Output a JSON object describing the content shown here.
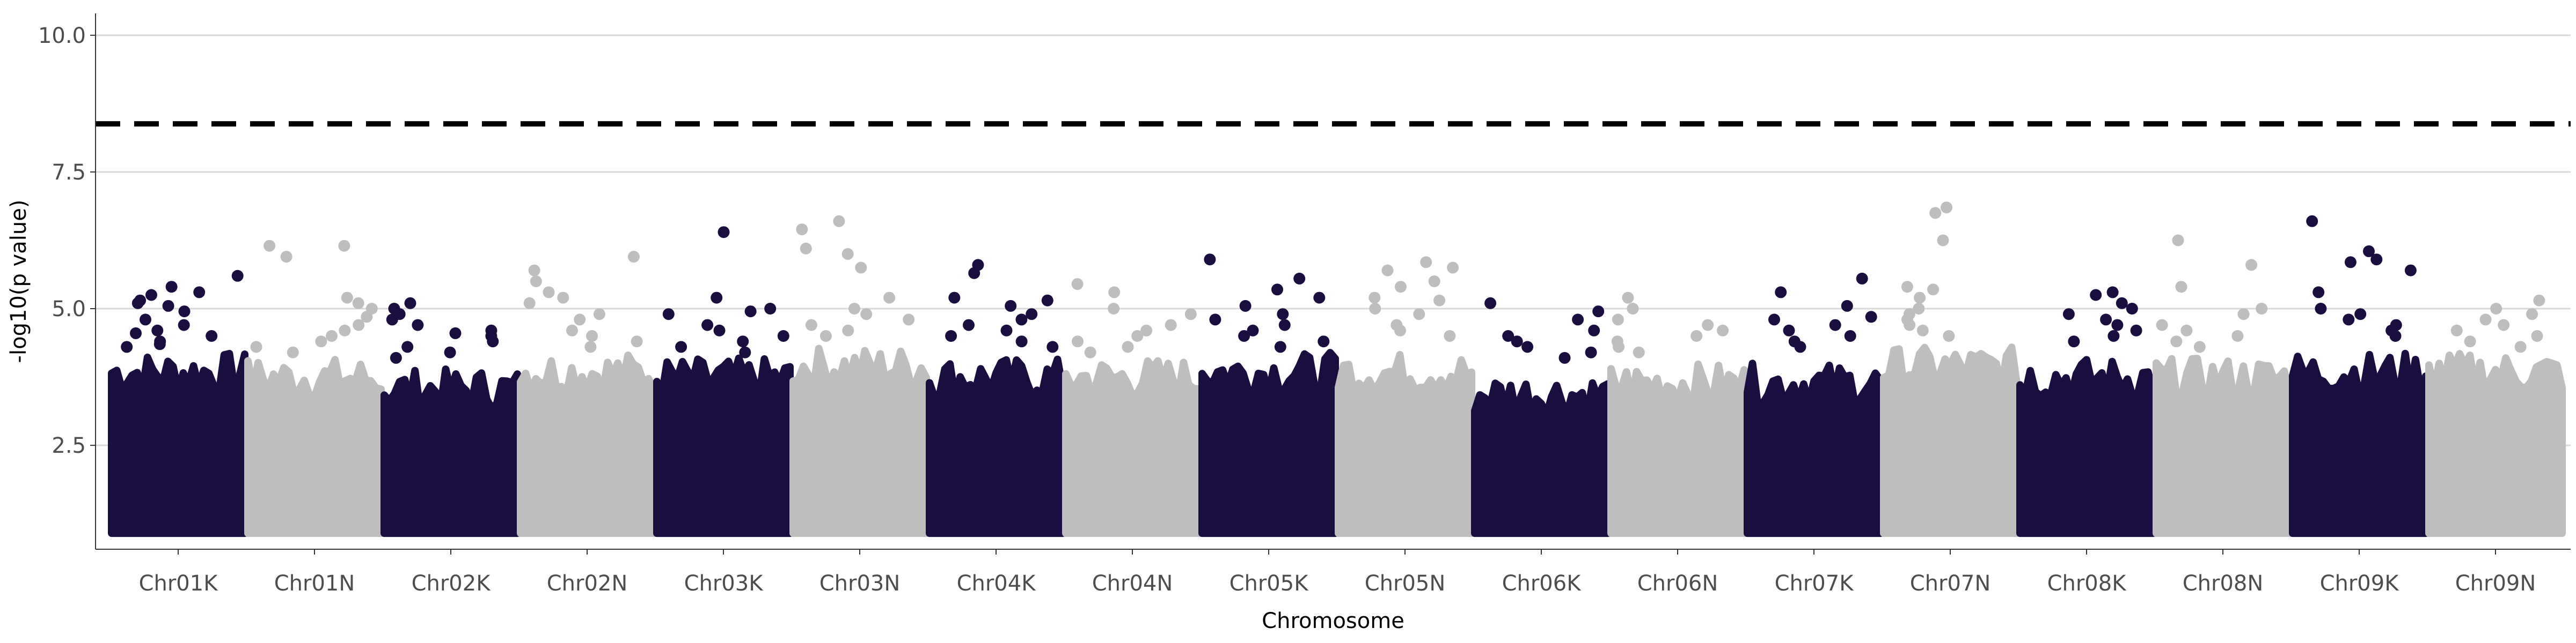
{
  "chart_data": {
    "type": "scatter",
    "xlabel": "Chromosome",
    "ylabel": "-log10(p value)",
    "ylim": [
      0.6,
      10.4
    ],
    "y_ticks": [
      {
        "value": 2.5,
        "label": "2.5"
      },
      {
        "value": 5.0,
        "label": "5.0"
      },
      {
        "value": 7.5,
        "label": "7.5"
      },
      {
        "value": 10.0,
        "label": "10.0"
      }
    ],
    "threshold": 8.38,
    "grid": "horizontal major",
    "legend": "none",
    "colors": {
      "odd": "#1a0e40",
      "even": "#bebebe",
      "threshold": "#000000",
      "grid": "#d9d9d9"
    },
    "series_floor": 1.0,
    "categories": [
      {
        "label": "Chr01K",
        "base_top": 3.9,
        "points": [
          5.15,
          5.05,
          4.95,
          5.3,
          5.25,
          5.1,
          5.6,
          5.4,
          4.8,
          4.7,
          4.6,
          4.55,
          4.5,
          4.4,
          4.35,
          4.3
        ]
      },
      {
        "label": "Chr01N",
        "base_top": 3.8,
        "points": [
          6.15,
          6.15,
          5.95,
          5.2,
          5.1,
          5.0,
          4.85,
          4.7,
          4.6,
          4.5,
          4.4,
          4.3,
          4.2
        ]
      },
      {
        "label": "Chr02K",
        "base_top": 3.6,
        "points": [
          4.7,
          4.6,
          5.1,
          5.0,
          4.9,
          4.8,
          4.55,
          4.5,
          4.4,
          4.3,
          4.2,
          4.1
        ]
      },
      {
        "label": "Chr02N",
        "base_top": 3.9,
        "points": [
          5.95,
          5.5,
          5.7,
          5.3,
          5.2,
          5.1,
          4.9,
          4.8,
          4.6,
          4.5,
          4.4,
          4.3
        ]
      },
      {
        "label": "Chr03K",
        "base_top": 3.8,
        "points": [
          6.4,
          5.2,
          5.0,
          4.95,
          4.9,
          4.7,
          4.6,
          4.5,
          4.4,
          4.3,
          4.2
        ]
      },
      {
        "label": "Chr03N",
        "base_top": 4.0,
        "points": [
          6.0,
          5.75,
          6.6,
          6.45,
          6.1,
          5.2,
          5.0,
          4.9,
          4.8,
          4.7,
          4.6,
          4.5
        ]
      },
      {
        "label": "Chr04K",
        "base_top": 3.8,
        "points": [
          5.8,
          5.65,
          5.2,
          5.15,
          5.05,
          4.9,
          4.8,
          4.7,
          4.6,
          4.5,
          4.4,
          4.3
        ]
      },
      {
        "label": "Chr04N",
        "base_top": 3.8,
        "points": [
          5.45,
          5.3,
          5.0,
          4.9,
          4.7,
          4.6,
          4.5,
          4.4,
          4.3,
          4.2
        ]
      },
      {
        "label": "Chr05K",
        "base_top": 3.9,
        "points": [
          5.55,
          5.35,
          5.2,
          5.9,
          5.05,
          4.9,
          4.8,
          4.7,
          4.6,
          4.5,
          4.4,
          4.3
        ]
      },
      {
        "label": "Chr05N",
        "base_top": 3.9,
        "points": [
          5.75,
          5.85,
          5.7,
          5.5,
          5.4,
          5.2,
          5.15,
          5.0,
          4.9,
          4.7,
          4.6,
          4.5
        ]
      },
      {
        "label": "Chr06K",
        "base_top": 3.5,
        "points": [
          5.1,
          4.95,
          4.8,
          4.6,
          4.5,
          4.4,
          4.3,
          4.2,
          4.1
        ]
      },
      {
        "label": "Chr06N",
        "base_top": 3.7,
        "points": [
          5.2,
          5.0,
          4.8,
          4.7,
          4.6,
          4.5,
          4.4,
          4.3,
          4.2
        ]
      },
      {
        "label": "Chr07K",
        "base_top": 3.7,
        "points": [
          5.05,
          4.85,
          5.55,
          5.3,
          4.8,
          4.7,
          4.6,
          4.5,
          4.4,
          4.3
        ]
      },
      {
        "label": "Chr07N",
        "base_top": 4.0,
        "points": [
          6.85,
          6.25,
          6.75,
          5.4,
          5.35,
          5.2,
          5.0,
          4.9,
          4.8,
          4.7,
          4.6,
          4.5
        ]
      },
      {
        "label": "Chr08K",
        "base_top": 3.8,
        "points": [
          5.1,
          5.3,
          5.0,
          4.9,
          4.8,
          5.25,
          4.7,
          4.6,
          4.5,
          4.4
        ]
      },
      {
        "label": "Chr08N",
        "base_top": 3.8,
        "points": [
          5.8,
          5.4,
          6.25,
          5.0,
          4.9,
          4.7,
          4.6,
          4.5,
          4.4,
          4.3
        ]
      },
      {
        "label": "Chr09K",
        "base_top": 3.9,
        "points": [
          6.6,
          6.05,
          5.9,
          5.85,
          5.7,
          5.3,
          5.0,
          4.9,
          4.8,
          4.7,
          4.6,
          4.5
        ]
      },
      {
        "label": "Chr09N",
        "base_top": 3.9,
        "points": [
          5.15,
          5.0,
          4.9,
          4.8,
          4.7,
          4.6,
          4.5,
          4.4,
          4.3
        ]
      }
    ]
  }
}
